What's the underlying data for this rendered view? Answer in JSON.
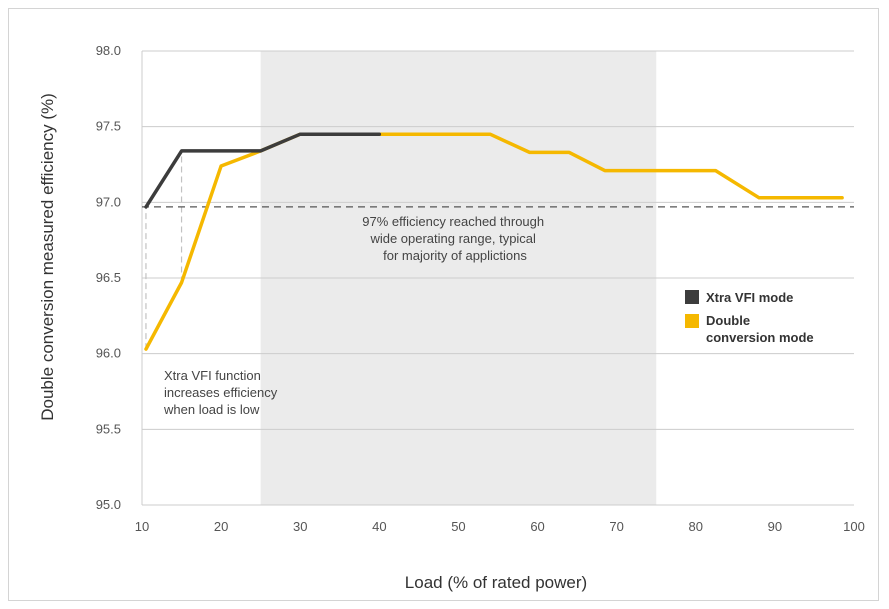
{
  "chart_data": {
    "type": "line",
    "xlabel": "Load (% of rated power)",
    "ylabel": "Double conversion measured efficiency (%)",
    "xlim": [
      10,
      100
    ],
    "ylim": [
      95.0,
      98.0
    ],
    "x_ticks": [
      "10",
      "20",
      "30",
      "40",
      "50",
      "60",
      "70",
      "80",
      "90",
      "100"
    ],
    "y_ticks": [
      "95.0",
      "95.5",
      "96.0",
      "96.5",
      "97.0",
      "97.5",
      "98.0"
    ],
    "grid": "horizontal",
    "shaded_range": [
      25,
      75
    ],
    "reference_line": {
      "y": 96.97,
      "style": "dashed"
    },
    "series": [
      {
        "name": "Xtra VFI mode",
        "color": "#3c3c3c",
        "points": [
          [
            10.5,
            96.97
          ],
          [
            15,
            97.34
          ],
          [
            25,
            97.34
          ],
          [
            30,
            97.45
          ],
          [
            40,
            97.45
          ]
        ]
      },
      {
        "name": "Double conversion mode",
        "color": "#f5b800",
        "points": [
          [
            10.5,
            96.03
          ],
          [
            15,
            96.47
          ],
          [
            20,
            97.24
          ],
          [
            25,
            97.34
          ],
          [
            30,
            97.45
          ],
          [
            54,
            97.45
          ],
          [
            59,
            97.33
          ],
          [
            64,
            97.33
          ],
          [
            68.5,
            97.21
          ],
          [
            82.5,
            97.21
          ],
          [
            88,
            97.03
          ],
          [
            98.5,
            97.03
          ]
        ]
      }
    ],
    "drop_lines": [
      {
        "x": 10.5,
        "from": 96.03,
        "to": 96.97
      },
      {
        "x": 15,
        "from": 96.47,
        "to": 97.34
      }
    ],
    "annotations": [
      {
        "lines": [
          "97% efficiency reached through",
          "wide operating range, typical",
          "for majority of applictions"
        ]
      },
      {
        "lines": [
          "Xtra VFI function",
          "increases efficiency",
          "when load is low"
        ]
      }
    ],
    "legend": {
      "position": "right",
      "entries": [
        {
          "lines": [
            "Xtra VFI mode"
          ],
          "color": "#3c3c3c"
        },
        {
          "lines": [
            "Double",
            "conversion mode"
          ],
          "color": "#f5b800"
        }
      ]
    }
  }
}
